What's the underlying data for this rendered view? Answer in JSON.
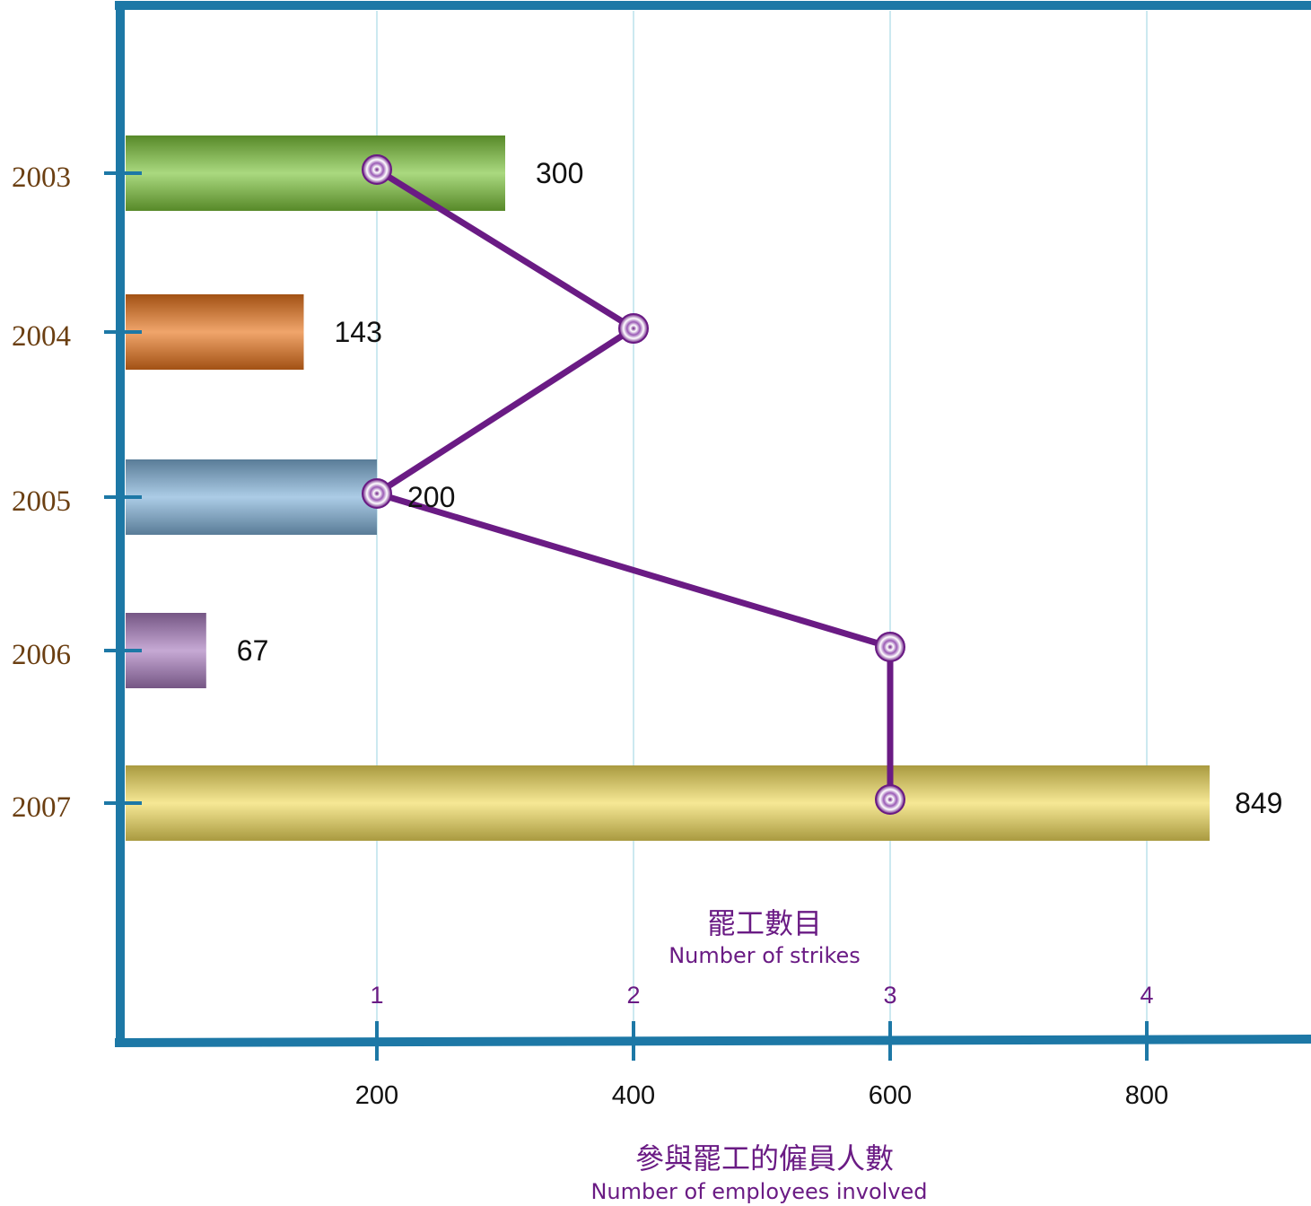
{
  "chart_data": {
    "type": "bar",
    "orientation": "horizontal",
    "categories": [
      "2003",
      "2004",
      "2005",
      "2006",
      "2007"
    ],
    "series": [
      {
        "values": [
          300,
          143,
          200,
          67,
          849
        ],
        "data_labels": [
          "300",
          "143",
          "200",
          "67",
          "849"
        ],
        "colors": [
          "#7cc43a",
          "#e8741c",
          "#7fb1d8",
          "#a77bbd",
          "#f1dc5c"
        ],
        "axis": "bottom"
      },
      {
        "values": [
          1,
          2,
          1,
          3,
          3
        ],
        "type": "line",
        "color": "#6a1b84",
        "axis": "top"
      }
    ],
    "bottom_axis": {
      "label_cn": "參與罷工的僱員人數",
      "label_en": "Number of employees involved",
      "ticks": [
        200,
        400,
        600,
        800
      ],
      "tick_labels": [
        "200",
        "400",
        "600",
        "800"
      ],
      "range": [
        0,
        900
      ]
    },
    "top_axis": {
      "label_cn": "罷工數目",
      "label_en": "Number of strikes",
      "ticks": [
        1,
        2,
        3,
        4
      ],
      "tick_labels": [
        "1",
        "2",
        "3",
        "4"
      ],
      "range": [
        0,
        4.5
      ]
    },
    "grid": true,
    "axis_color": "#1d78a6",
    "grid_color": "#cce9f0"
  }
}
